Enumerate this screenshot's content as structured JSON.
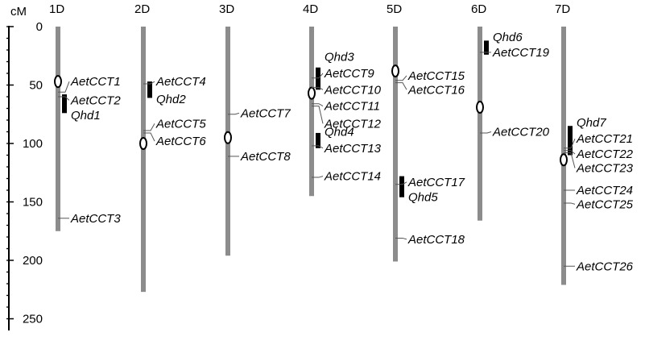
{
  "axis": {
    "unit": "cM",
    "min": 0,
    "max": 250,
    "ticks": [
      0,
      50,
      100,
      150,
      200,
      250
    ],
    "minor_step": 10
  },
  "colors": {
    "chromosome": "#8c8c8c",
    "qtl": "#000000",
    "centromere": "#000000",
    "text": "#000000"
  },
  "chromosomes": [
    {
      "name": "1D",
      "length": 175,
      "centromere": 47,
      "qtls": [
        {
          "start": 58,
          "end": 74
        }
      ],
      "genes": [
        {
          "label": "AetCCT1",
          "pos": 56,
          "label_pos": 47
        },
        {
          "label": "AetCCT2",
          "pos": 60,
          "label_pos": 63
        },
        {
          "label": "Qhd1",
          "pos": 62,
          "label_pos": 76,
          "no_line": true
        },
        {
          "label": "AetCCT3",
          "pos": 164,
          "label_pos": 164
        }
      ]
    },
    {
      "name": "2D",
      "length": 227,
      "centromere": 100,
      "qtls": [
        {
          "start": 47,
          "end": 61
        }
      ],
      "genes": [
        {
          "label": "AetCCT4",
          "pos": 49,
          "label_pos": 47
        },
        {
          "label": "Qhd2",
          "pos": 55,
          "label_pos": 62,
          "no_line": true
        },
        {
          "label": "AetCCT5",
          "pos": 89,
          "label_pos": 83
        },
        {
          "label": "AetCCT6",
          "pos": 91,
          "label_pos": 98
        }
      ]
    },
    {
      "name": "3D",
      "length": 196,
      "centromere": 95,
      "qtls": [],
      "genes": [
        {
          "label": "AetCCT7",
          "pos": 75,
          "label_pos": 74
        },
        {
          "label": "AetCCT8",
          "pos": 111,
          "label_pos": 111
        }
      ]
    },
    {
      "name": "4D",
      "length": 145,
      "centromere": 57,
      "qtls": [
        {
          "start": 35,
          "end": 54
        },
        {
          "start": 91,
          "end": 104
        }
      ],
      "genes": [
        {
          "label": "Qhd3",
          "pos": 36,
          "label_pos": 26,
          "no_line": true
        },
        {
          "label": "AetCCT9",
          "pos": 44,
          "label_pos": 40
        },
        {
          "label": "AetCCT10",
          "pos": 52,
          "label_pos": 54
        },
        {
          "label": "AetCCT11",
          "pos": 66,
          "label_pos": 68
        },
        {
          "label": "AetCCT12",
          "pos": 68,
          "label_pos": 83
        },
        {
          "label": "Qhd4",
          "pos": 93,
          "label_pos": 90,
          "no_line": true
        },
        {
          "label": "AetCCT13",
          "pos": 102,
          "label_pos": 104
        },
        {
          "label": "AetCCT14",
          "pos": 129,
          "label_pos": 128
        }
      ]
    },
    {
      "name": "5D",
      "length": 201,
      "centromere": 38,
      "qtls": [
        {
          "start": 128,
          "end": 146
        }
      ],
      "genes": [
        {
          "label": "AetCCT15",
          "pos": 46,
          "label_pos": 42
        },
        {
          "label": "AetCCT16",
          "pos": 48,
          "label_pos": 54
        },
        {
          "label": "AetCCT17",
          "pos": 135,
          "label_pos": 133
        },
        {
          "label": "Qhd5",
          "pos": 140,
          "label_pos": 146,
          "no_line": true
        },
        {
          "label": "AetCCT18",
          "pos": 181,
          "label_pos": 182
        }
      ]
    },
    {
      "name": "6D",
      "length": 166,
      "centromere": 69,
      "qtls": [
        {
          "start": 12,
          "end": 24
        }
      ],
      "genes": [
        {
          "label": "Qhd6",
          "pos": 15,
          "label_pos": 9,
          "no_line": true
        },
        {
          "label": "AetCCT19",
          "pos": 22,
          "label_pos": 22
        },
        {
          "label": "AetCCT20",
          "pos": 91,
          "label_pos": 90
        }
      ]
    },
    {
      "name": "7D",
      "length": 221,
      "centromere": 114,
      "qtls": [
        {
          "start": 85,
          "end": 110
        }
      ],
      "genes": [
        {
          "label": "Qhd7",
          "pos": 87,
          "label_pos": 82,
          "no_line": true
        },
        {
          "label": "AetCCT21",
          "pos": 104,
          "label_pos": 96
        },
        {
          "label": "AetCCT22",
          "pos": 106,
          "label_pos": 109
        },
        {
          "label": "AetCCT23",
          "pos": 108,
          "label_pos": 121
        },
        {
          "label": "AetCCT24",
          "pos": 140,
          "label_pos": 140
        },
        {
          "label": "AetCCT25",
          "pos": 151,
          "label_pos": 152
        },
        {
          "label": "AetCCT26",
          "pos": 205,
          "label_pos": 205
        }
      ]
    }
  ]
}
